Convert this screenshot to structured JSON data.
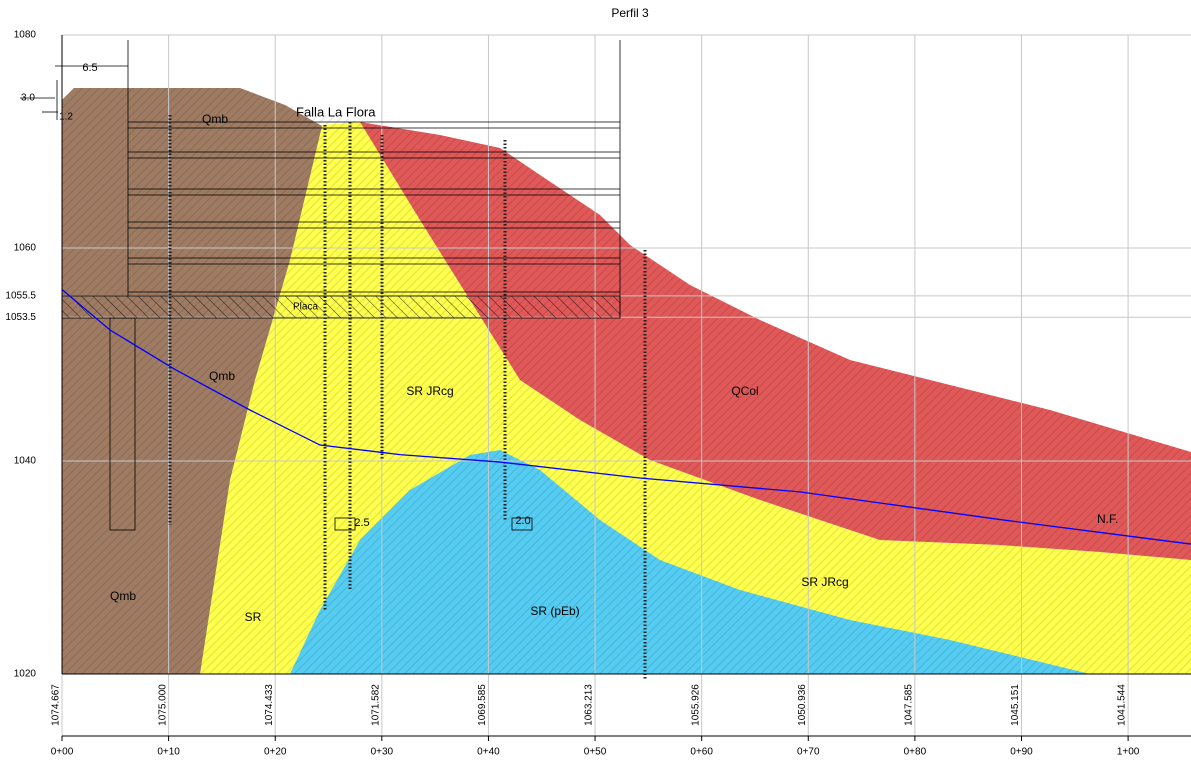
{
  "chart_data": {
    "type": "profile",
    "title": "Perfil 3",
    "xlim": [
      0,
      105.9
    ],
    "xticks": [
      {
        "value": 0,
        "label": "0+00"
      },
      {
        "value": 10,
        "label": "0+10"
      },
      {
        "value": 20,
        "label": "0+20"
      },
      {
        "value": 30,
        "label": "0+30"
      },
      {
        "value": 40,
        "label": "0+40"
      },
      {
        "value": 50,
        "label": "0+50"
      },
      {
        "value": 60,
        "label": "0+60"
      },
      {
        "value": 70,
        "label": "0+70"
      },
      {
        "value": 80,
        "label": "0+80"
      },
      {
        "value": 90,
        "label": "0+90"
      },
      {
        "value": 100,
        "label": "1+00"
      }
    ],
    "ground_labels": [
      "1074.667",
      "1075.000",
      "1074.433",
      "1071.582",
      "1069.585",
      "1063.213",
      "1055.926",
      "1050.936",
      "1047.585",
      "1045.151",
      "1041.544"
    ],
    "ylim": [
      1020,
      1080
    ],
    "yticks": [
      1080,
      1060,
      1055.5,
      1053.5,
      1040,
      1020
    ],
    "grid": true,
    "units": [
      {
        "labels": [
          "Qmb",
          "Qmb",
          "Qmb"
        ],
        "color": "#9e7b62"
      },
      {
        "labels": [
          "SR",
          "SR JRcg",
          "SR JRcg"
        ],
        "color": "#ffff4d"
      },
      {
        "labels": [
          "QCol"
        ],
        "color": "#e05858"
      },
      {
        "labels": [
          "SR (pEb)"
        ],
        "color": "#55ccf2"
      }
    ],
    "series": [
      {
        "name": "N.F.",
        "color": "#0000ff",
        "x": [
          0,
          4.5,
          10.6,
          17.6,
          24.2,
          31.7,
          41.1,
          54.2,
          69.2,
          88.0,
          105.9
        ],
        "values": [
          1056.1,
          1052.3,
          1048.6,
          1044.8,
          1041.5,
          1040.6,
          1039.9,
          1038.4,
          1037.1,
          1034.5,
          1032.2
        ]
      }
    ],
    "annotations": [
      "Falla La Flora",
      "Placa",
      "6.5",
      "3.0",
      "1.2",
      "2.5",
      "2.0"
    ]
  }
}
